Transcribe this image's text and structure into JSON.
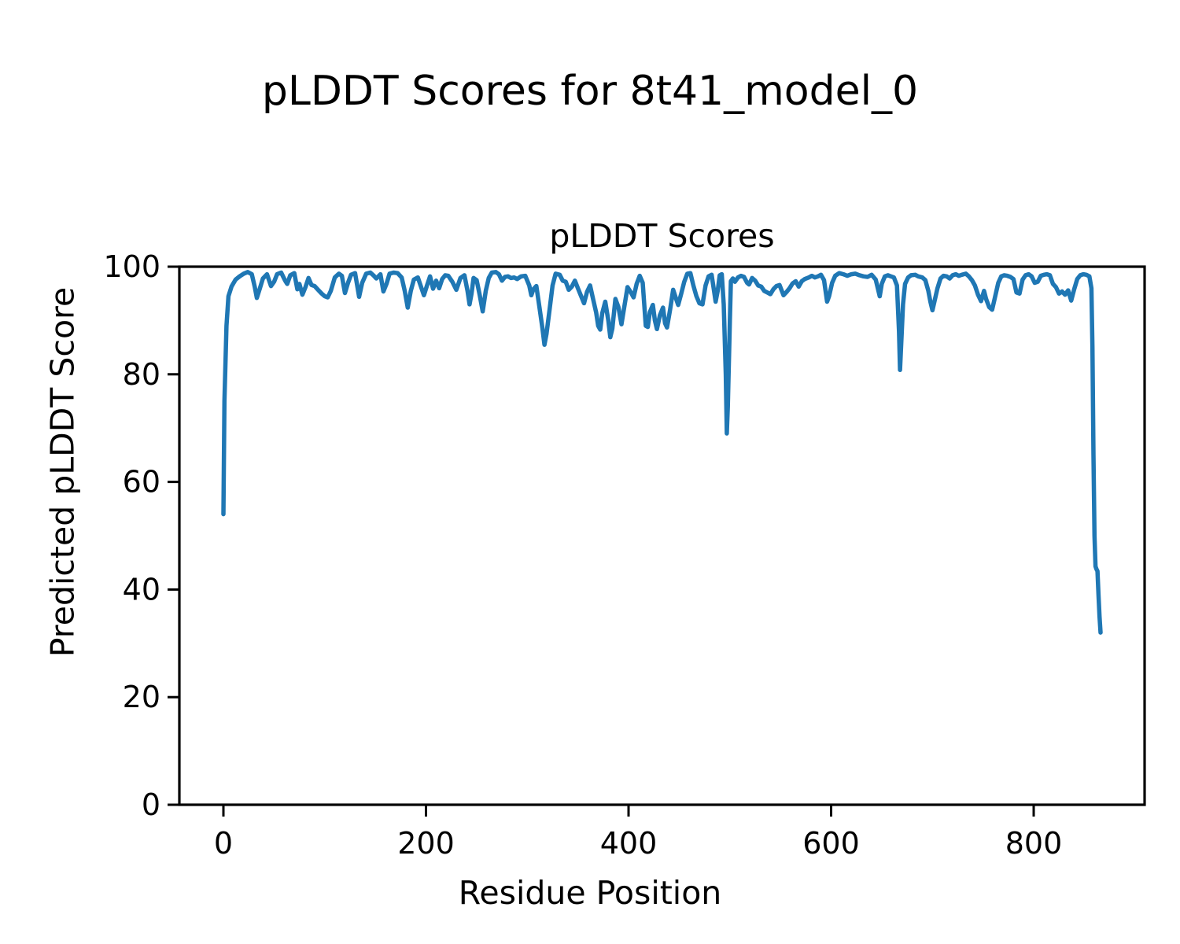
{
  "figure": {
    "suptitle": "pLDDT Scores for 8t41_model_0"
  },
  "chart_data": {
    "type": "line",
    "title": "pLDDT Scores",
    "xlabel": "Residue Position",
    "ylabel": "Predicted pLDDT Score",
    "xlim": [
      -43.5,
      909.5
    ],
    "ylim": [
      0,
      100
    ],
    "xticks": [
      0,
      200,
      400,
      600,
      800
    ],
    "yticks": [
      0,
      20,
      40,
      60,
      80,
      100
    ],
    "grid": false,
    "legend_position": "none",
    "line_color": "#1f77b4",
    "axis_color": "#000000",
    "series": [
      {
        "name": "pLDDT",
        "points": [
          [
            0,
            54
          ],
          [
            1,
            75
          ],
          [
            3,
            89
          ],
          [
            5,
            94.5
          ],
          [
            8,
            96.3
          ],
          [
            12,
            97.6
          ],
          [
            16,
            98.2
          ],
          [
            20,
            98.7
          ],
          [
            24,
            99
          ],
          [
            28,
            98.6
          ],
          [
            31,
            96.2
          ],
          [
            33,
            94.2
          ],
          [
            36,
            96
          ],
          [
            39,
            97.8
          ],
          [
            43,
            98.6
          ],
          [
            47,
            96.4
          ],
          [
            50,
            97.2
          ],
          [
            53,
            98.6
          ],
          [
            57,
            98.9
          ],
          [
            61,
            97.4
          ],
          [
            63,
            96.8
          ],
          [
            66,
            98.4
          ],
          [
            70,
            98.8
          ],
          [
            73,
            95.8
          ],
          [
            75,
            96.8
          ],
          [
            78,
            94.8
          ],
          [
            81,
            96.2
          ],
          [
            84,
            97.9
          ],
          [
            87,
            96.6
          ],
          [
            90,
            96.4
          ],
          [
            94,
            95.6
          ],
          [
            97,
            95
          ],
          [
            100,
            94.5
          ],
          [
            103,
            94.3
          ],
          [
            106,
            95.5
          ],
          [
            110,
            98
          ],
          [
            114,
            98.7
          ],
          [
            117,
            98.3
          ],
          [
            120,
            95.1
          ],
          [
            123,
            97
          ],
          [
            126,
            98.5
          ],
          [
            130,
            98.8
          ],
          [
            134,
            94.4
          ],
          [
            137,
            97
          ],
          [
            141,
            98.7
          ],
          [
            145,
            98.9
          ],
          [
            148,
            98.4
          ],
          [
            151,
            97.8
          ],
          [
            155,
            98.6
          ],
          [
            158,
            95.4
          ],
          [
            161,
            96.8
          ],
          [
            164,
            98.7
          ],
          [
            168,
            98.9
          ],
          [
            172,
            98.8
          ],
          [
            176,
            98
          ],
          [
            179,
            95.5
          ],
          [
            182,
            92.4
          ],
          [
            185,
            95.5
          ],
          [
            188,
            97.6
          ],
          [
            192,
            98
          ],
          [
            195,
            96.3
          ],
          [
            198,
            94.7
          ],
          [
            201,
            96.5
          ],
          [
            204,
            98.2
          ],
          [
            207,
            95.9
          ],
          [
            210,
            97.4
          ],
          [
            213,
            96
          ],
          [
            216,
            97.7
          ],
          [
            219,
            98.4
          ],
          [
            222,
            98.3
          ],
          [
            226,
            97.2
          ],
          [
            230,
            95.7
          ],
          [
            234,
            97.9
          ],
          [
            238,
            98.4
          ],
          [
            241,
            95.5
          ],
          [
            243,
            93
          ],
          [
            245,
            95
          ],
          [
            247,
            97.9
          ],
          [
            250,
            97.5
          ],
          [
            253,
            94.8
          ],
          [
            256,
            91.7
          ],
          [
            259,
            95.5
          ],
          [
            262,
            97.9
          ],
          [
            265,
            98.9
          ],
          [
            269,
            99
          ],
          [
            272,
            98.6
          ],
          [
            275,
            97.4
          ],
          [
            278,
            98.1
          ],
          [
            281,
            98.2
          ],
          [
            284,
            97.9
          ],
          [
            287,
            98
          ],
          [
            290,
            97.7
          ],
          [
            294,
            98.2
          ],
          [
            298,
            98.3
          ],
          [
            302,
            96.5
          ],
          [
            304,
            94.7
          ],
          [
            306,
            95.8
          ],
          [
            309,
            96.4
          ],
          [
            312,
            92.5
          ],
          [
            315,
            88.5
          ],
          [
            317,
            85.5
          ],
          [
            319,
            87.5
          ],
          [
            322,
            92
          ],
          [
            325,
            96.5
          ],
          [
            328,
            98.7
          ],
          [
            332,
            98.5
          ],
          [
            335,
            97.4
          ],
          [
            338,
            97.2
          ],
          [
            341,
            95.7
          ],
          [
            344,
            96.3
          ],
          [
            347,
            97.4
          ],
          [
            350,
            96
          ],
          [
            353,
            94.6
          ],
          [
            356,
            93.2
          ],
          [
            359,
            95.3
          ],
          [
            362,
            96.5
          ],
          [
            365,
            94
          ],
          [
            368,
            91.5
          ],
          [
            370,
            89
          ],
          [
            372,
            88.3
          ],
          [
            374,
            91.3
          ],
          [
            377,
            93.5
          ],
          [
            380,
            90
          ],
          [
            382,
            86.9
          ],
          [
            384,
            88.5
          ],
          [
            387,
            94
          ],
          [
            390,
            92.5
          ],
          [
            393,
            89.3
          ],
          [
            396,
            92.8
          ],
          [
            399,
            96.2
          ],
          [
            402,
            95.3
          ],
          [
            405,
            94.3
          ],
          [
            408,
            96.8
          ],
          [
            411,
            98.3
          ],
          [
            414,
            97
          ],
          [
            417,
            89
          ],
          [
            419,
            88.8
          ],
          [
            421,
            91.5
          ],
          [
            424,
            92.9
          ],
          [
            426,
            90
          ],
          [
            428,
            88.4
          ],
          [
            431,
            91
          ],
          [
            434,
            92.4
          ],
          [
            436,
            89.5
          ],
          [
            438,
            88.7
          ],
          [
            441,
            92
          ],
          [
            444,
            95.7
          ],
          [
            447,
            94
          ],
          [
            449,
            92.9
          ],
          [
            452,
            95
          ],
          [
            455,
            97.2
          ],
          [
            458,
            98.7
          ],
          [
            461,
            98.8
          ],
          [
            464,
            96.5
          ],
          [
            467,
            94.5
          ],
          [
            470,
            93.2
          ],
          [
            473,
            93
          ],
          [
            476,
            96.5
          ],
          [
            479,
            98.2
          ],
          [
            482,
            98.5
          ],
          [
            484,
            96
          ],
          [
            486,
            93.5
          ],
          [
            488,
            95.5
          ],
          [
            490,
            98.4
          ],
          [
            492,
            98.6
          ],
          [
            494,
            93
          ],
          [
            496,
            80
          ],
          [
            497,
            69
          ],
          [
            498,
            74
          ],
          [
            500,
            90
          ],
          [
            501,
            97.3
          ],
          [
            503,
            97.8
          ],
          [
            505,
            97.2
          ],
          [
            508,
            98
          ],
          [
            511,
            98.3
          ],
          [
            514,
            98.1
          ],
          [
            517,
            97
          ],
          [
            519,
            96.7
          ],
          [
            522,
            97.9
          ],
          [
            525,
            97.4
          ],
          [
            528,
            96.5
          ],
          [
            531,
            96.3
          ],
          [
            534,
            95.5
          ],
          [
            537,
            95.2
          ],
          [
            540,
            94.9
          ],
          [
            543,
            95.8
          ],
          [
            546,
            96.4
          ],
          [
            549,
            96.6
          ],
          [
            553,
            94.7
          ],
          [
            556,
            95.3
          ],
          [
            559,
            96
          ],
          [
            562,
            96.9
          ],
          [
            565,
            97.3
          ],
          [
            568,
            96.3
          ],
          [
            571,
            97.3
          ],
          [
            574,
            97.7
          ],
          [
            578,
            98
          ],
          [
            581,
            98.3
          ],
          [
            584,
            98
          ],
          [
            587,
            98.2
          ],
          [
            590,
            98.5
          ],
          [
            593,
            97.5
          ],
          [
            596,
            93.5
          ],
          [
            598,
            94.5
          ],
          [
            601,
            97
          ],
          [
            604,
            98.3
          ],
          [
            608,
            98.8
          ],
          [
            612,
            98.6
          ],
          [
            616,
            98.3
          ],
          [
            620,
            98.6
          ],
          [
            624,
            98.7
          ],
          [
            628,
            98.4
          ],
          [
            632,
            98.2
          ],
          [
            636,
            98.1
          ],
          [
            640,
            98.5
          ],
          [
            644,
            97.6
          ],
          [
            648,
            94.5
          ],
          [
            650,
            96.8
          ],
          [
            653,
            98.2
          ],
          [
            656,
            98.4
          ],
          [
            659,
            98.2
          ],
          [
            662,
            98
          ],
          [
            665,
            96.5
          ],
          [
            667,
            88
          ],
          [
            668,
            80.8
          ],
          [
            669,
            85
          ],
          [
            671,
            93
          ],
          [
            673,
            96.8
          ],
          [
            676,
            98
          ],
          [
            679,
            98.4
          ],
          [
            683,
            98.5
          ],
          [
            686,
            98.2
          ],
          [
            690,
            98
          ],
          [
            693,
            97.5
          ],
          [
            696,
            95.5
          ],
          [
            698,
            93.5
          ],
          [
            700,
            91.9
          ],
          [
            702,
            93.5
          ],
          [
            705,
            96
          ],
          [
            708,
            97.8
          ],
          [
            711,
            98.3
          ],
          [
            714,
            98.2
          ],
          [
            717,
            97.8
          ],
          [
            720,
            98.4
          ],
          [
            723,
            98.6
          ],
          [
            726,
            98.3
          ],
          [
            729,
            98.5
          ],
          [
            733,
            98.7
          ],
          [
            736,
            98.2
          ],
          [
            739,
            97.5
          ],
          [
            742,
            96.5
          ],
          [
            745,
            94.8
          ],
          [
            748,
            93.6
          ],
          [
            751,
            95.5
          ],
          [
            753,
            94
          ],
          [
            756,
            92.5
          ],
          [
            759,
            92
          ],
          [
            762,
            94.5
          ],
          [
            765,
            97
          ],
          [
            768,
            98.2
          ],
          [
            771,
            98.4
          ],
          [
            774,
            98.3
          ],
          [
            777,
            98.1
          ],
          [
            780,
            97.7
          ],
          [
            783,
            95.2
          ],
          [
            786,
            95
          ],
          [
            789,
            97.6
          ],
          [
            792,
            98.4
          ],
          [
            795,
            98.6
          ],
          [
            798,
            98.2
          ],
          [
            801,
            97
          ],
          [
            804,
            97.2
          ],
          [
            807,
            98.3
          ],
          [
            810,
            98.5
          ],
          [
            813,
            98.6
          ],
          [
            816,
            98.4
          ],
          [
            819,
            96.8
          ],
          [
            822,
            96.2
          ],
          [
            825,
            95
          ],
          [
            828,
            95.4
          ],
          [
            831,
            94.8
          ],
          [
            834,
            95.6
          ],
          [
            837,
            93.7
          ],
          [
            840,
            95.8
          ],
          [
            843,
            97.7
          ],
          [
            846,
            98.4
          ],
          [
            849,
            98.6
          ],
          [
            852,
            98.5
          ],
          [
            855,
            98.2
          ],
          [
            857,
            96
          ],
          [
            858,
            85
          ],
          [
            859,
            65
          ],
          [
            860,
            50
          ],
          [
            861,
            44.3
          ],
          [
            862,
            43.8
          ],
          [
            863,
            43.4
          ],
          [
            864,
            39
          ],
          [
            865,
            35
          ],
          [
            866,
            32
          ]
        ]
      }
    ]
  }
}
